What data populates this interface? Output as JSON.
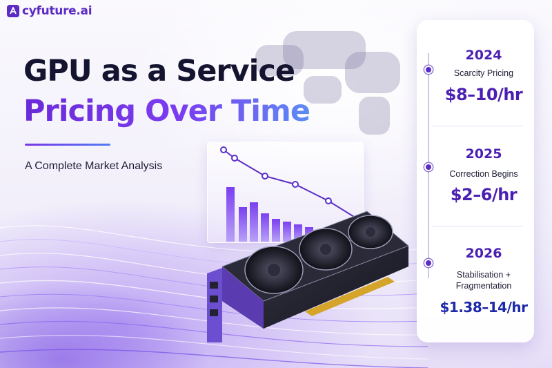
{
  "brand": {
    "logo_text": "cyfuture.ai",
    "logo_icon": "cyfuture-logo-icon"
  },
  "hero": {
    "title_line1": "GPU as a Service",
    "title_line2": "Pricing Over Time",
    "subtitle": "A Complete Market Analysis"
  },
  "timeline": [
    {
      "year": "2024",
      "phase": "Scarcity Pricing",
      "price": "$8–10/hr"
    },
    {
      "year": "2025",
      "phase": "Correction Begins",
      "price": "$2–6/hr"
    },
    {
      "year": "2026",
      "phase_lines": [
        "Stabilisation +",
        "Fragmentation"
      ],
      "price": "$1.38–14/hr"
    }
  ],
  "colors": {
    "brand_purple": "#5b2bc4",
    "title_dark": "#141430",
    "accent_blue": "#4f7df2",
    "price_blue": "#1e2aa8"
  }
}
